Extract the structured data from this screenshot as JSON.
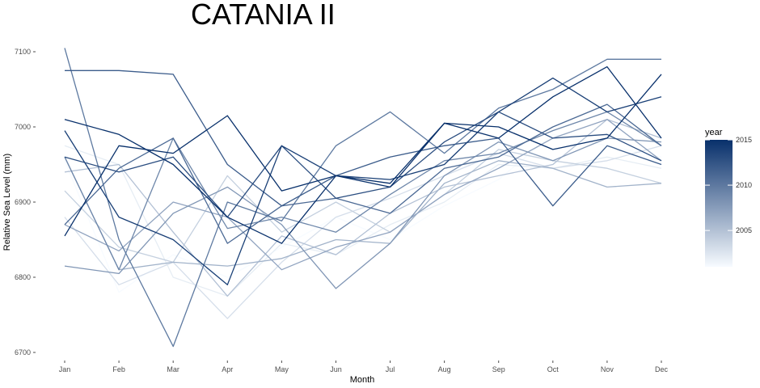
{
  "chart_data": {
    "type": "line",
    "title": "CATANIA II",
    "xlabel": "Month",
    "ylabel": "Relative Sea Level (mm)",
    "categories": [
      "Jan",
      "Feb",
      "Mar",
      "Apr",
      "May",
      "Jun",
      "Jul",
      "Aug",
      "Sep",
      "Oct",
      "Nov",
      "Dec"
    ],
    "ylim": [
      6690,
      7110
    ],
    "yticks": [
      6700,
      6800,
      6900,
      7000,
      7100
    ],
    "grid": false,
    "legend": {
      "title": "year",
      "position": "right",
      "ticks": [
        2005,
        2010,
        2015
      ],
      "range": [
        2001,
        2015
      ],
      "color_low": "#f7fbff",
      "color_high": "#08306b"
    },
    "series": [
      {
        "year": 2001,
        "values": [
          6955,
          6780,
          6830,
          6800,
          6840,
          6880,
          6850,
          6895,
          6930,
          6990,
          6975,
          6960
        ]
      },
      {
        "year": 2002,
        "values": [
          6975,
          6950,
          6800,
          6775,
          6845,
          6830,
          6870,
          6900,
          6950,
          6945,
          6960,
          6945
        ]
      },
      {
        "year": 2003,
        "values": [
          6880,
          6790,
          6820,
          6745,
          6820,
          6880,
          6905,
          6935,
          6965,
          6945,
          6955,
          6975
        ]
      },
      {
        "year": 2004,
        "values": [
          6915,
          6840,
          6820,
          6935,
          6860,
          6900,
          6860,
          6910,
          6970,
          6955,
          6945,
          6925
        ]
      },
      {
        "year": 2005,
        "values": [
          6940,
          6950,
          6860,
          6775,
          6855,
          6830,
          6885,
          6920,
          6935,
          6950,
          7010,
          6985
        ]
      },
      {
        "year": 2006,
        "values": [
          6960,
          6810,
          6820,
          6815,
          6825,
          6850,
          6845,
          6925,
          6955,
          6945,
          6920,
          6925
        ]
      },
      {
        "year": 2007,
        "values": [
          6870,
          6835,
          6900,
          6880,
          6810,
          6840,
          6860,
          6910,
          6945,
          6985,
          7010,
          6955
        ]
      },
      {
        "year": 2008,
        "values": [
          6815,
          6805,
          6885,
          6920,
          6870,
          6785,
          6845,
          6935,
          6980,
          6955,
          6985,
          6980
        ]
      },
      {
        "year": 2009,
        "values": [
          6960,
          6810,
          6985,
          6865,
          6880,
          6860,
          6910,
          6955,
          6965,
          6995,
          7020,
          6975
        ]
      },
      {
        "year": 2010,
        "values": [
          7105,
          6850,
          6708,
          6900,
          6875,
          6975,
          7020,
          6965,
          7025,
          7050,
          7090,
          7090
        ]
      },
      {
        "year": 2011,
        "values": [
          6870,
          6945,
          6985,
          6845,
          6895,
          6905,
          6885,
          6945,
          6960,
          7000,
          7030,
          6975
        ]
      },
      {
        "year": 2012,
        "values": [
          7075,
          7075,
          7070,
          6950,
          6895,
          6935,
          6960,
          6975,
          6985,
          6895,
          6975,
          6950
        ]
      },
      {
        "year": 2013,
        "values": [
          6960,
          6940,
          6960,
          6880,
          6975,
          6905,
          6920,
          6980,
          7020,
          6985,
          6990,
          6955
        ]
      },
      {
        "year": 2014,
        "values": [
          6995,
          6880,
          6850,
          6790,
          6975,
          6935,
          6930,
          6950,
          7020,
          7065,
          7020,
          7040
        ]
      },
      {
        "year": 2015,
        "values": [
          6855,
          6975,
          6965,
          7015,
          6915,
          6935,
          6925,
          7005,
          7000,
          6970,
          6985,
          7070
        ]
      },
      {
        "year": 2015,
        "values": [
          7010,
          6990,
          6950,
          6880,
          6845,
          6935,
          6920,
          7005,
          6985,
          7040,
          7080,
          6985
        ]
      }
    ]
  }
}
